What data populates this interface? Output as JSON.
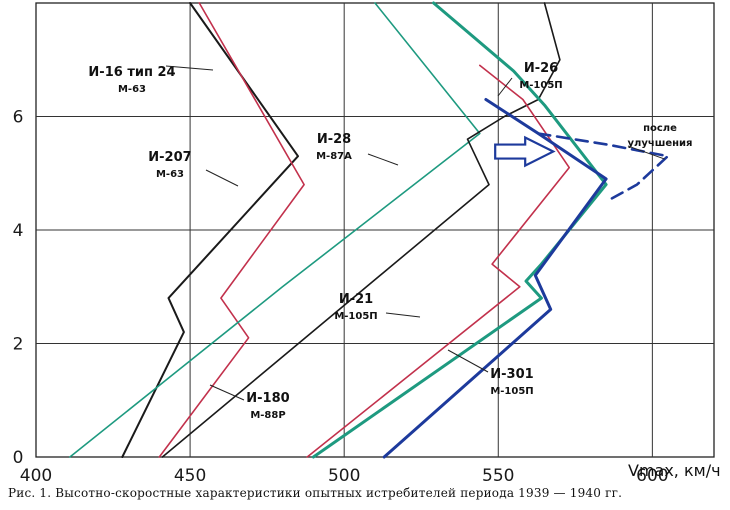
{
  "chart_data": {
    "type": "line",
    "xlabel": "Vmax, км/ч",
    "xlim": [
      400,
      620
    ],
    "ylim": [
      0,
      8
    ],
    "x_ticks": [
      "400",
      "450",
      "500",
      "550",
      "600"
    ],
    "y_ticks": [
      "0",
      "2",
      "4",
      "6"
    ],
    "grid": true,
    "series": [
      {
        "key": "i16",
        "name": "И-16 тип 24",
        "engine": "М-63",
        "color": "#1a1a1a",
        "width": 2,
        "points": [
          [
            428,
            0
          ],
          [
            448,
            2.2
          ],
          [
            443,
            2.8
          ],
          [
            485,
            5.3
          ],
          [
            450,
            8
          ]
        ]
      },
      {
        "key": "i207",
        "name": "И-207",
        "engine": "М-63",
        "color": "#c2314c",
        "width": 1.6,
        "points": [
          [
            440,
            0
          ],
          [
            469,
            2.1
          ],
          [
            460,
            2.8
          ],
          [
            487,
            4.8
          ],
          [
            453,
            8
          ]
        ]
      },
      {
        "key": "i28",
        "name": "И-28",
        "engine": "М-87А",
        "color": "#1e9a80",
        "width": 1.6,
        "points": [
          [
            411,
            0
          ],
          [
            480,
            3
          ],
          [
            544,
            5.7
          ],
          [
            510,
            8
          ]
        ]
      },
      {
        "key": "i180",
        "name": "И-180",
        "engine": "М-88Р",
        "color": "#1a1a1a",
        "width": 1.6,
        "points": [
          [
            441,
            0
          ],
          [
            547,
            4.8
          ],
          [
            540,
            5.6
          ],
          [
            552,
            6
          ],
          [
            563,
            6.3
          ],
          [
            570,
            7
          ],
          [
            565,
            8
          ]
        ]
      },
      {
        "key": "i21",
        "name": "И-21",
        "engine": "М-105П",
        "color": "#c2314c",
        "width": 1.6,
        "points": [
          [
            488,
            0
          ],
          [
            557,
            3
          ],
          [
            548,
            3.4
          ],
          [
            573,
            5.1
          ],
          [
            558,
            6.3
          ],
          [
            544,
            6.9
          ]
        ]
      },
      {
        "key": "i26",
        "name": "И-26",
        "engine": "М-105П",
        "color": "#1e9a80",
        "width": 3,
        "points": [
          [
            490,
            0
          ],
          [
            564,
            2.8
          ],
          [
            559,
            3.1
          ],
          [
            564,
            3.4
          ],
          [
            585,
            4.8
          ],
          [
            565,
            6.2
          ],
          [
            555,
            6.8
          ],
          [
            529,
            8
          ]
        ]
      },
      {
        "key": "i301",
        "name": "И-301",
        "engine": "М-105П",
        "color": "#1d3a9c",
        "width": 3,
        "points": [
          [
            513,
            0
          ],
          [
            567,
            2.6
          ],
          [
            562,
            3.2
          ],
          [
            585,
            4.9
          ],
          [
            563,
            5.7
          ],
          [
            546,
            6.3
          ]
        ]
      },
      {
        "key": "i301_post",
        "name": "",
        "engine": "",
        "color": "#1d3a9c",
        "width": 2.6,
        "dashed": true,
        "points": [
          [
            563,
            5.7
          ],
          [
            586,
            5.5
          ],
          [
            605,
            5.3
          ],
          [
            595,
            4.8
          ],
          [
            585,
            4.5
          ]
        ]
      }
    ],
    "annotation": {
      "text": "после улучшения"
    }
  },
  "caption": "Рис. 1. Высотно-скоростные характеристики опытных истребителей периода 1939 — 1940 гг."
}
